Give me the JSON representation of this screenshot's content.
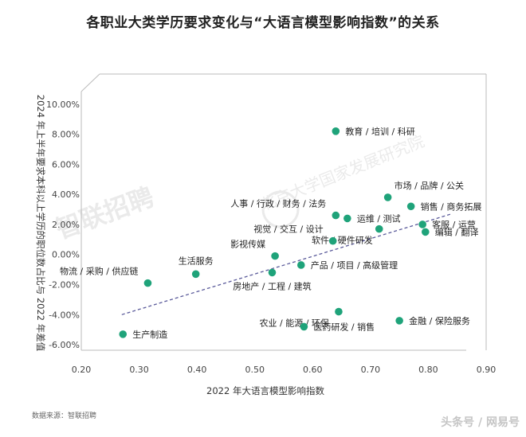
{
  "title": "各职业大类学历要求变化与“大语言模型影响指数”的关系",
  "source": "数据来源：智联招聘",
  "watermark_corner": "头条号 / 网易号",
  "colors": {
    "point": "#1fa37a",
    "trend": "#5a5a9a",
    "axis": "#999999",
    "frame": "#bbbbbb"
  },
  "chart_data": {
    "type": "scatter",
    "title": "各职业大类学历要求变化与“大语言模型影响指数”的关系",
    "xlabel": "2022 年大语言模型影响指数",
    "ylabel": "2024 年上半年要求本科以上学历的职位数占比与 2022 年差值",
    "xlim": [
      0.2,
      0.9
    ],
    "ylim": [
      -7.0,
      12.0
    ],
    "x_ticks": [
      "0.20",
      "0.30",
      "0.40",
      "0.50",
      "0.60",
      "0.70",
      "0.80",
      "0.90"
    ],
    "y_ticks": [
      "10.00%",
      "8.00%",
      "6.00%",
      "4.00%",
      "2.00%",
      "0.00%",
      "-2.00%",
      "-4.00%",
      "-6.00%"
    ],
    "grid": false,
    "trendline": {
      "x": [
        0.27,
        0.84
      ],
      "y": [
        -4.0,
        2.7
      ]
    },
    "points": [
      {
        "label": "教育 / 培训 / 科研",
        "x": 0.64,
        "y": 8.2,
        "pos": "right"
      },
      {
        "label": "市场 / 品牌 / 公关",
        "x": 0.73,
        "y": 3.8,
        "pos": "top-right"
      },
      {
        "label": "销售 / 商务拓展",
        "x": 0.77,
        "y": 3.2,
        "pos": "right"
      },
      {
        "label": "人事 / 行政 / 财务 / 法务",
        "x": 0.64,
        "y": 2.6,
        "pos": "top-left"
      },
      {
        "label": "运维 / 测试",
        "x": 0.66,
        "y": 2.4,
        "pos": "right"
      },
      {
        "label": "客服 / 运营",
        "x": 0.79,
        "y": 2.0,
        "pos": "right"
      },
      {
        "label": "软件 / 硬件研发",
        "x": 0.715,
        "y": 1.7,
        "pos": "bottom-left"
      },
      {
        "label": "编辑 / 翻译",
        "x": 0.795,
        "y": 1.5,
        "pos": "right"
      },
      {
        "label": "视觉 / 交互 / 设计",
        "x": 0.635,
        "y": 0.9,
        "pos": "top-left"
      },
      {
        "label": "影视传媒",
        "x": 0.535,
        "y": -0.1,
        "pos": "top-left"
      },
      {
        "label": "产品 / 项目 / 高级管理",
        "x": 0.58,
        "y": -0.7,
        "pos": "right"
      },
      {
        "label": "生活服务",
        "x": 0.398,
        "y": -1.3,
        "pos": "top"
      },
      {
        "label": "房地产 / 工程 / 建筑",
        "x": 0.53,
        "y": -1.2,
        "pos": "bottom"
      },
      {
        "label": "物流 / 采购 / 供应链",
        "x": 0.315,
        "y": -1.9,
        "pos": "top-left"
      },
      {
        "label": "农业 / 能源 / 环保",
        "x": 0.645,
        "y": -3.8,
        "pos": "bottom-left"
      },
      {
        "label": "金融 / 保险服务",
        "x": 0.75,
        "y": -4.4,
        "pos": "right"
      },
      {
        "label": "医药研发 / 销售",
        "x": 0.585,
        "y": -4.8,
        "pos": "right"
      },
      {
        "label": "生产制造",
        "x": 0.272,
        "y": -5.3,
        "pos": "right"
      }
    ]
  }
}
